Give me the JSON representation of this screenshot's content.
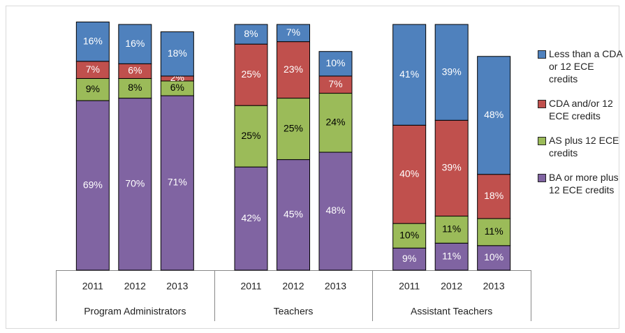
{
  "chart_data": {
    "type": "stacked_bar",
    "groups": [
      "Program Administrators",
      "Teachers",
      "Assistant Teachers"
    ],
    "categories": [
      "2011",
      "2012",
      "2013",
      "2011",
      "2012",
      "2013",
      "2011",
      "2012",
      "2013"
    ],
    "ylim": [
      0,
      100
    ],
    "series": [
      {
        "name": "Less than a CDA or 12 ECE credits",
        "color": "#4f81bd",
        "label_color": "#ffffff",
        "values": [
          16,
          16,
          18,
          8,
          7,
          10,
          41,
          39,
          48
        ],
        "value_labels": [
          "16%",
          "16%",
          "18%",
          "8%",
          "7%",
          "10%",
          "41%",
          "39%",
          "48%"
        ]
      },
      {
        "name": "CDA and/or 12 ECE credits",
        "color": "#c0504d",
        "label_color": "#ffffff",
        "values": [
          7,
          6,
          2,
          25,
          23,
          7,
          40,
          39,
          18
        ],
        "value_labels": [
          "7%",
          "6%",
          "2%",
          "25%",
          "23%",
          "7%",
          "40%",
          "39%",
          "18%"
        ]
      },
      {
        "name": "AS plus 12 ECE credits",
        "color": "#9bbb59",
        "label_color": "#000000",
        "values": [
          9,
          8,
          6,
          25,
          25,
          24,
          10,
          11,
          11
        ],
        "value_labels": [
          "9%",
          "8%",
          "6%",
          "25%",
          "25%",
          "24%",
          "10%",
          "11%",
          "11%"
        ]
      },
      {
        "name": "BA or more plus 12 ECE credits",
        "color": "#8064a2",
        "label_color": "#ffffff",
        "values": [
          69,
          70,
          71,
          42,
          45,
          48,
          9,
          11,
          10
        ],
        "value_labels": [
          "69%",
          "70%",
          "71%",
          "42%",
          "45%",
          "48%",
          "9%",
          "11%",
          "10%"
        ]
      }
    ]
  }
}
